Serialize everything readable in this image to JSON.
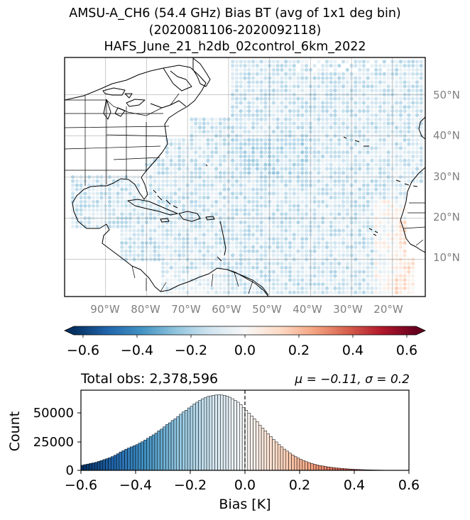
{
  "title": {
    "line1": "AMSU-A_CH6 (54.4 GHz) Bias BT (avg of 1x1 deg bin)",
    "line2": "(2020081106-2020092118)",
    "line3": "HAFS_June_21_h2db_02control_6km_2022"
  },
  "map": {
    "lon_labels": [
      "90°W",
      "80°W",
      "70°W",
      "60°W",
      "50°W",
      "40°W",
      "30°W",
      "20°W"
    ],
    "lat_labels": [
      "50°N",
      "40°N",
      "30°N",
      "20°N",
      "10°N"
    ],
    "gridline_color": "#888888",
    "label_color": "#808080",
    "coast_color": "#000000"
  },
  "colorbar": {
    "ticks": [
      "−0.6",
      "−0.4",
      "−0.2",
      "0.0",
      "0.2",
      "0.4",
      "0.6"
    ],
    "colormap": "RdBu_r",
    "range": [
      -0.6,
      0.6
    ],
    "extend": "both"
  },
  "stats": {
    "total_obs_label": "Total obs: 2,378,596",
    "mu_sigma_label": "μ = −0.11, σ = 0.2"
  },
  "chart_data": [
    {
      "type": "heatmap",
      "title": "",
      "xlabel": "",
      "ylabel": "",
      "xlim": [
        -100,
        -12
      ],
      "ylim": [
        1,
        59
      ],
      "colorbar_range": [
        -0.6,
        0.6
      ]
    },
    {
      "type": "bar",
      "xlabel": "Bias [K]",
      "ylabel": "Count",
      "xlim": [
        -0.6,
        0.6
      ],
      "ylim": [
        0,
        70000
      ],
      "y_ticks": [
        "0",
        "25000",
        "50000"
      ],
      "x_ticks": [
        "−0.6",
        "−0.4",
        "−0.2",
        "0.0",
        "0.2",
        "0.4",
        "0.6"
      ],
      "mean_line": 0.0,
      "bin_width": 0.01,
      "x": [
        -0.595,
        -0.585,
        -0.575,
        -0.565,
        -0.555,
        -0.545,
        -0.535,
        -0.525,
        -0.515,
        -0.505,
        -0.495,
        -0.485,
        -0.475,
        -0.465,
        -0.455,
        -0.445,
        -0.435,
        -0.425,
        -0.415,
        -0.405,
        -0.395,
        -0.385,
        -0.375,
        -0.365,
        -0.355,
        -0.345,
        -0.335,
        -0.325,
        -0.315,
        -0.305,
        -0.295,
        -0.285,
        -0.275,
        -0.265,
        -0.255,
        -0.245,
        -0.235,
        -0.225,
        -0.215,
        -0.205,
        -0.195,
        -0.185,
        -0.175,
        -0.165,
        -0.155,
        -0.145,
        -0.135,
        -0.125,
        -0.115,
        -0.105,
        -0.095,
        -0.085,
        -0.075,
        -0.065,
        -0.055,
        -0.045,
        -0.035,
        -0.025,
        -0.015,
        -0.005,
        0.005,
        0.015,
        0.025,
        0.035,
        0.045,
        0.055,
        0.065,
        0.075,
        0.085,
        0.095,
        0.105,
        0.115,
        0.125,
        0.135,
        0.145,
        0.155,
        0.165,
        0.175,
        0.185,
        0.195,
        0.205,
        0.215,
        0.225,
        0.235,
        0.245,
        0.255,
        0.265,
        0.275,
        0.285,
        0.295,
        0.305,
        0.315,
        0.325,
        0.335,
        0.345,
        0.355,
        0.365,
        0.375,
        0.385,
        0.395,
        0.405,
        0.415,
        0.425,
        0.435,
        0.445,
        0.455,
        0.465,
        0.475,
        0.485,
        0.495,
        0.505,
        0.515,
        0.525,
        0.535,
        0.545,
        0.555,
        0.565,
        0.575,
        0.585,
        0.595
      ],
      "values": [
        4500,
        5000,
        5500,
        6000,
        6500,
        7000,
        7800,
        8600,
        9400,
        10200,
        11000,
        12000,
        13200,
        14500,
        16000,
        17200,
        18500,
        19500,
        20500,
        21500,
        22500,
        23800,
        25000,
        26500,
        28000,
        29500,
        31000,
        32500,
        34500,
        36000,
        38000,
        40000,
        41500,
        43500,
        45000,
        47000,
        49000,
        51000,
        52500,
        54500,
        56000,
        58000,
        59500,
        61000,
        62500,
        63500,
        64500,
        65000,
        65500,
        65800,
        66000,
        65800,
        65500,
        64800,
        63800,
        62500,
        61000,
        59500,
        57500,
        55000,
        52500,
        50000,
        47500,
        45000,
        42500,
        39500,
        37000,
        34500,
        32000,
        29500,
        27000,
        24800,
        22500,
        20500,
        18500,
        16800,
        15000,
        13500,
        12000,
        10800,
        9600,
        8600,
        7600,
        6800,
        6000,
        5300,
        4700,
        4200,
        3800,
        3400,
        3000,
        2700,
        2400,
        2100,
        1900,
        1700,
        1500,
        1300,
        1150,
        1000,
        880,
        770,
        670,
        580,
        500,
        430,
        370,
        320,
        270,
        230,
        190,
        160,
        130,
        110,
        90,
        70,
        55,
        40,
        30,
        20
      ]
    }
  ]
}
